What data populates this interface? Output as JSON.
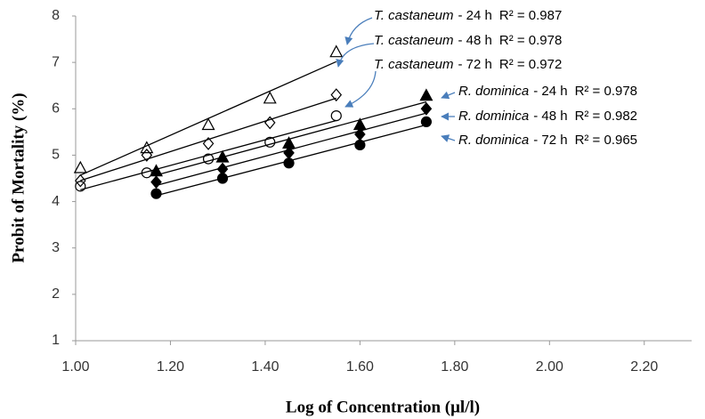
{
  "chart_data": {
    "type": "scatter",
    "x_label": "Log of Concentration (μl/l)",
    "y_label": "Probit of Mortality (%)",
    "xlim": [
      1.0,
      2.3
    ],
    "xticks": [
      {
        "value": 1.0,
        "label": "1.00"
      },
      {
        "value": 1.2,
        "label": "1.20"
      },
      {
        "value": 1.4,
        "label": "1.40"
      },
      {
        "value": 1.6,
        "label": "1.60"
      },
      {
        "value": 1.8,
        "label": "1.80"
      },
      {
        "value": 2.0,
        "label": "2.00"
      },
      {
        "value": 2.2,
        "label": "2.20"
      }
    ],
    "ylim": [
      1,
      8
    ],
    "yticks": [
      1,
      2,
      3,
      4,
      5,
      6,
      7,
      8
    ],
    "trendline": true,
    "series": [
      {
        "name": "T. castaneum - 24 h",
        "species": "T. castaneum",
        "period": "- 24 h",
        "r2_label": "R² = 0.987",
        "marker": "triangle",
        "fill": "none",
        "color": "#000000",
        "x": [
          1.01,
          1.15,
          1.28,
          1.41,
          1.55
        ],
        "values": [
          4.72,
          5.15,
          5.65,
          6.22,
          7.22
        ]
      },
      {
        "name": "T. castaneum - 48 h",
        "species": "T. castaneum",
        "period": "- 48 h",
        "r2_label": "R² = 0.978",
        "marker": "diamond",
        "fill": "none",
        "color": "#000000",
        "x": [
          1.01,
          1.15,
          1.28,
          1.41,
          1.55
        ],
        "values": [
          4.45,
          5.0,
          5.25,
          5.7,
          6.3
        ]
      },
      {
        "name": "T. castaneum - 72 h",
        "species": "T. castaneum",
        "period": "- 72 h",
        "r2_label": "R² = 0.972",
        "marker": "circle",
        "fill": "none",
        "color": "#000000",
        "x": [
          1.01,
          1.15,
          1.28,
          1.41,
          1.55
        ],
        "values": [
          4.33,
          4.62,
          4.92,
          5.28,
          5.85
        ]
      },
      {
        "name": "R. dominica - 24 h",
        "species": "R. dominica",
        "period": "- 24 h",
        "r2_label": "R² = 0.978",
        "marker": "triangle",
        "fill": "#000000",
        "color": "#000000",
        "x": [
          1.17,
          1.31,
          1.45,
          1.6,
          1.74
        ],
        "values": [
          4.65,
          4.95,
          5.25,
          5.65,
          6.28
        ]
      },
      {
        "name": "R. dominica - 48 h",
        "species": "R. dominica",
        "period": "- 48 h",
        "r2_label": "R² = 0.982",
        "marker": "diamond",
        "fill": "#000000",
        "color": "#000000",
        "x": [
          1.17,
          1.31,
          1.45,
          1.6,
          1.74
        ],
        "values": [
          4.42,
          4.7,
          5.05,
          5.45,
          6.0
        ]
      },
      {
        "name": "R. dominica - 72 h",
        "species": "R. dominica",
        "period": "- 72 h",
        "r2_label": "R² = 0.965",
        "marker": "circle",
        "fill": "#000000",
        "color": "#000000",
        "x": [
          1.17,
          1.31,
          1.45,
          1.6,
          1.74
        ],
        "values": [
          4.17,
          4.5,
          4.83,
          5.22,
          5.72
        ]
      }
    ]
  }
}
